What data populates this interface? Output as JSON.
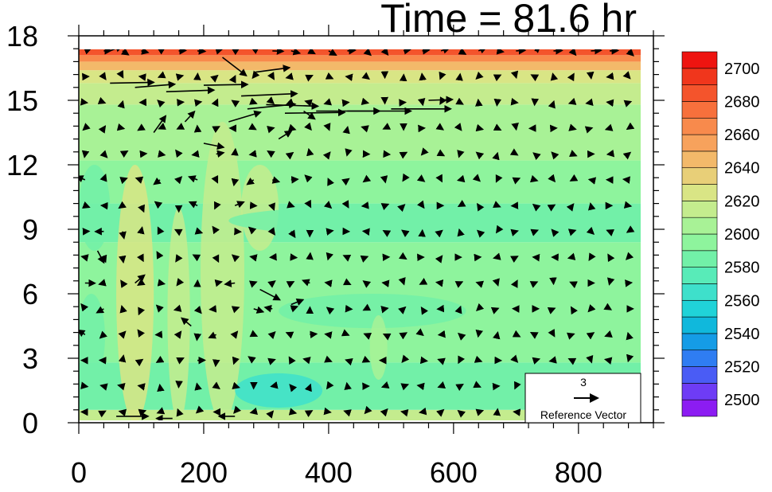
{
  "chart_data": {
    "type": "heatmap",
    "title": "Time = 81.6 hr",
    "xlim": [
      0,
      920
    ],
    "ylim": [
      0,
      18
    ],
    "x_ticks": [
      0,
      200,
      400,
      600,
      800
    ],
    "y_ticks": [
      0,
      3,
      6,
      9,
      12,
      15,
      18
    ],
    "x_tick_labels": [
      "0",
      "200",
      "400",
      "600",
      "800"
    ],
    "y_tick_labels": [
      "0",
      "3",
      "6",
      "9",
      "12",
      "15",
      "18"
    ],
    "data_xmax": 900,
    "data_ymax": 17.9,
    "colorbar": {
      "levels": [
        2490,
        2500,
        2510,
        2520,
        2530,
        2540,
        2550,
        2560,
        2570,
        2580,
        2590,
        2600,
        2610,
        2620,
        2630,
        2640,
        2650,
        2660,
        2670,
        2680,
        2690,
        2700,
        2710
      ],
      "labels": [
        "2500",
        "2520",
        "2540",
        "2560",
        "2580",
        "2600",
        "2620",
        "2640",
        "2660",
        "2680",
        "2700"
      ],
      "colors": [
        "#8c1cf2",
        "#6e3cf5",
        "#4a5cf5",
        "#2f7df2",
        "#159ce6",
        "#10b8dc",
        "#20d3d8",
        "#3ee0cb",
        "#58ebb8",
        "#72f0a8",
        "#8ef49d",
        "#a8f296",
        "#c4ec8e",
        "#d9e585",
        "#e8cf78",
        "#f3b96a",
        "#f7a25c",
        "#f88a4c",
        "#f7703c",
        "#f4542c",
        "#f0361c",
        "#ee1410"
      ]
    },
    "field_bands": [
      {
        "y_range": [
          0,
          0.6
        ],
        "value": 2612
      },
      {
        "y_range": [
          0.6,
          2.8
        ],
        "value": 2587
      },
      {
        "y_range": [
          2.8,
          8.4
        ],
        "value": 2592
      },
      {
        "y_range": [
          8.4,
          10.2
        ],
        "value": 2587
      },
      {
        "y_range": [
          10.2,
          12.2
        ],
        "value": 2593
      },
      {
        "y_range": [
          12.2,
          14.8
        ],
        "value": 2603
      },
      {
        "y_range": [
          14.8,
          15.8
        ],
        "value": 2612
      },
      {
        "y_range": [
          15.8,
          16.4
        ],
        "value": 2622
      },
      {
        "y_range": [
          16.4,
          16.8
        ],
        "value": 2642
      },
      {
        "y_range": [
          16.8,
          17.1
        ],
        "value": 2662
      },
      {
        "y_range": [
          17.1,
          17.4
        ],
        "value": 2682
      },
      {
        "y_range": [
          17.4,
          17.9
        ],
        "value": 2702
      }
    ],
    "field_patches": [
      {
        "x": 90,
        "y": 6,
        "rx": 30,
        "ry": 6,
        "value": 2622
      },
      {
        "x": 230,
        "y": 7,
        "rx": 35,
        "ry": 7,
        "value": 2618
      },
      {
        "x": 160,
        "y": 5,
        "rx": 18,
        "ry": 5,
        "value": 2615
      },
      {
        "x": 290,
        "y": 10,
        "rx": 30,
        "ry": 2,
        "value": 2610
      },
      {
        "x": 320,
        "y": 1.5,
        "rx": 70,
        "ry": 0.8,
        "value": 2565
      },
      {
        "x": 25,
        "y": 10,
        "rx": 25,
        "ry": 2,
        "value": 2580
      },
      {
        "x": 20,
        "y": 4,
        "rx": 22,
        "ry": 2,
        "value": 2582
      },
      {
        "x": 470,
        "y": 5.2,
        "rx": 150,
        "ry": 0.8,
        "value": 2580
      },
      {
        "x": 500,
        "y": 9.4,
        "rx": 260,
        "ry": 0.7,
        "value": 2582
      },
      {
        "x": 480,
        "y": 3.5,
        "rx": 14,
        "ry": 1.5,
        "value": 2608
      }
    ],
    "vectors": {
      "grid_dx": 30,
      "grid_dy": 1.2,
      "special": [
        {
          "x": 50,
          "y": 17.3,
          "u": 1.5,
          "v": 0.6
        },
        {
          "x": 50,
          "y": 15.8,
          "u": 5.5,
          "v": 0.1
        },
        {
          "x": 90,
          "y": 15.6,
          "u": 5.0,
          "v": 0.4
        },
        {
          "x": 140,
          "y": 15.4,
          "u": 6.0,
          "v": 0.2
        },
        {
          "x": 200,
          "y": 15.7,
          "u": 5.5,
          "v": 0.1
        },
        {
          "x": 240,
          "y": 14.0,
          "u": 4.0,
          "v": 1.2
        },
        {
          "x": 260,
          "y": 15.2,
          "u": 7.0,
          "v": 0.3
        },
        {
          "x": 270,
          "y": 14.6,
          "u": 6.0,
          "v": 0.6
        },
        {
          "x": 300,
          "y": 14.8,
          "u": 6.5,
          "v": -0.2
        },
        {
          "x": 330,
          "y": 14.4,
          "u": 7.5,
          "v": 0.1
        },
        {
          "x": 380,
          "y": 14.5,
          "u": 8.0,
          "v": 0.0
        },
        {
          "x": 430,
          "y": 14.5,
          "u": 8.0,
          "v": 0.0
        },
        {
          "x": 500,
          "y": 14.6,
          "u": 7.5,
          "v": 0.0
        },
        {
          "x": 560,
          "y": 15.0,
          "u": 3.0,
          "v": 0.1
        },
        {
          "x": 280,
          "y": 16.3,
          "u": 4.5,
          "v": 0.6
        },
        {
          "x": 230,
          "y": 17.0,
          "u": 3.0,
          "v": -2.3
        },
        {
          "x": 200,
          "y": 13.0,
          "u": 2.5,
          "v": -0.5
        },
        {
          "x": 120,
          "y": 13.5,
          "u": 1.5,
          "v": 2.1
        },
        {
          "x": 170,
          "y": 14.0,
          "u": 1.2,
          "v": 1.3
        },
        {
          "x": 320,
          "y": 13.2,
          "u": 1.6,
          "v": 1.0
        },
        {
          "x": 360,
          "y": 14.5,
          "u": 1.4,
          "v": -1.0
        },
        {
          "x": 290,
          "y": 6.2,
          "u": 2.5,
          "v": -1.3
        },
        {
          "x": 90,
          "y": 6.5,
          "u": 1.2,
          "v": 1.0
        },
        {
          "x": 30,
          "y": 8.0,
          "u": 0.8,
          "v": -1.5
        },
        {
          "x": 180,
          "y": 4.5,
          "u": -1.2,
          "v": 1.0
        },
        {
          "x": 340,
          "y": 5.5,
          "u": 1.5,
          "v": 0.6
        },
        {
          "x": 60,
          "y": 0.3,
          "u": 4.0,
          "v": 0.0
        },
        {
          "x": 150,
          "y": 0.2,
          "u": -2.0,
          "v": 0.0
        },
        {
          "x": 250,
          "y": 0.3,
          "u": -2.0,
          "v": 0.0
        }
      ]
    },
    "reference_vector": {
      "magnitude_label": "3",
      "label": "Reference Vector",
      "magnitude": 3
    }
  }
}
